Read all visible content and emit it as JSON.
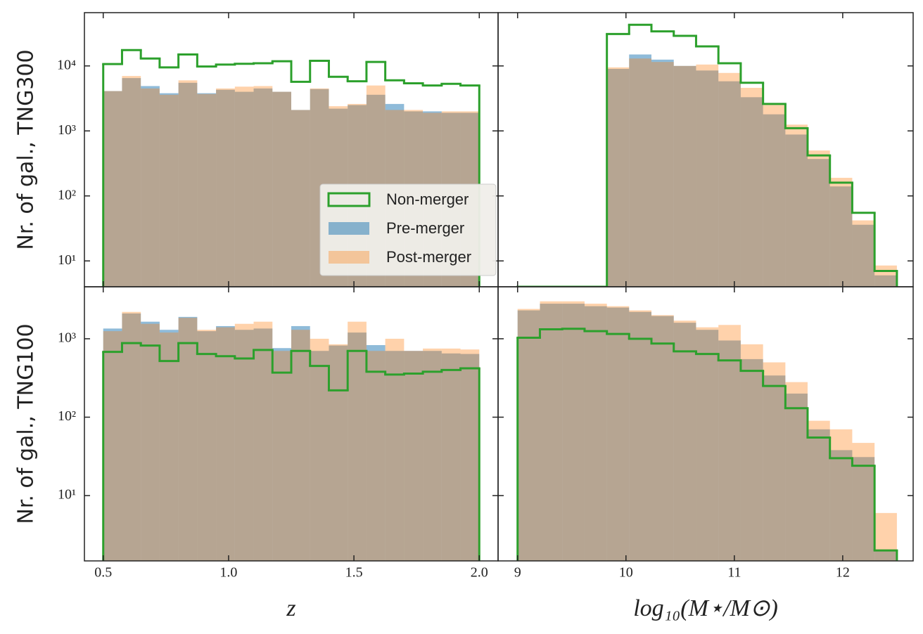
{
  "chart_data": [
    {
      "type": "histogram",
      "ylabel": "Nr. of gal., TNG300",
      "log_y": true,
      "legend": "lower center",
      "bins": [
        0.5,
        0.575,
        0.65,
        0.725,
        0.8,
        0.875,
        0.95,
        1.025,
        1.1,
        1.175,
        1.25,
        1.325,
        1.4,
        1.475,
        1.55,
        1.625,
        1.7,
        1.775,
        1.85,
        1.925,
        2.0
      ],
      "xlim": [
        0.425,
        2.075
      ],
      "xticks": [
        0.5,
        1.0,
        1.5,
        2.0
      ],
      "ylim": [
        4,
        66000
      ],
      "yticks": [
        {
          "value": 10,
          "label": "10¹"
        },
        {
          "value": 100,
          "label": "10²"
        },
        {
          "value": 1000,
          "label": "10³"
        },
        {
          "value": 10000,
          "label": "10⁴"
        }
      ],
      "series": [
        {
          "name": "Pre-merger",
          "color": "#1f77b4",
          "histtype": "stepfilled",
          "values": [
            4100,
            6500,
            4900,
            3800,
            5500,
            3800,
            4300,
            4000,
            4500,
            4000,
            2100,
            4400,
            2200,
            2500,
            3600,
            2600,
            2000,
            2000,
            1900,
            1900
          ]
        },
        {
          "name": "Post-merger",
          "color": "#ff7f0e",
          "histtype": "stepfilled",
          "values": [
            4100,
            7000,
            4500,
            3600,
            6000,
            3700,
            4500,
            4800,
            4900,
            4000,
            2100,
            4500,
            2400,
            2600,
            5000,
            2100,
            2100,
            1900,
            2000,
            2000
          ]
        },
        {
          "name": "Non-merger",
          "color": "#2ca02c",
          "histtype": "step",
          "values": [
            10700,
            17500,
            13000,
            9500,
            15000,
            9800,
            10500,
            10800,
            11000,
            11800,
            5700,
            12000,
            6800,
            5800,
            11500,
            6000,
            5400,
            5000,
            5300,
            5000
          ]
        }
      ]
    },
    {
      "type": "histogram",
      "log_y": true,
      "bins": [
        9.0,
        9.206,
        9.412,
        9.618,
        9.824,
        10.029,
        10.235,
        10.441,
        10.647,
        10.853,
        11.059,
        11.265,
        11.471,
        11.676,
        11.882,
        12.088,
        12.294,
        12.5
      ],
      "xlim": [
        8.82,
        12.65
      ],
      "xticks": [
        9,
        10,
        11,
        12
      ],
      "ylim": [
        4,
        66000
      ],
      "yticks": [
        10,
        100,
        1000,
        10000
      ],
      "series": [
        {
          "name": "Pre-merger",
          "color": "#1f77b4",
          "histtype": "stepfilled",
          "values": [
            0,
            0,
            0,
            0,
            9000,
            15000,
            12500,
            10000,
            8500,
            5800,
            3300,
            1800,
            880,
            370,
            140,
            36,
            6
          ]
        },
        {
          "name": "Post-merger",
          "color": "#ff7f0e",
          "histtype": "stepfilled",
          "values": [
            0,
            0,
            0,
            0,
            9500,
            13000,
            11500,
            10000,
            10500,
            7800,
            4600,
            2500,
            1250,
            500,
            190,
            42,
            8.5
          ]
        },
        {
          "name": "Non-merger",
          "color": "#2ca02c",
          "histtype": "step",
          "values": [
            0,
            0,
            0,
            0,
            31000,
            43000,
            34000,
            29000,
            20000,
            11000,
            5500,
            2600,
            1100,
            420,
            160,
            55,
            7
          ]
        }
      ]
    },
    {
      "type": "histogram",
      "ylabel": "Nr. of gal., TNG100",
      "xlabel": "z",
      "log_y": true,
      "bins": [
        0.5,
        0.575,
        0.65,
        0.725,
        0.8,
        0.875,
        0.95,
        1.025,
        1.1,
        1.175,
        1.25,
        1.325,
        1.4,
        1.475,
        1.55,
        1.625,
        1.7,
        1.775,
        1.85,
        1.925,
        2.0
      ],
      "xlim": [
        0.425,
        2.075
      ],
      "xticks": [
        0.5,
        {
          "value": 1.0,
          "label": "1.0"
        },
        1.5,
        {
          "value": 2.0,
          "label": "2.0"
        }
      ],
      "ylim": [
        1.47,
        4600
      ],
      "yticks": [
        {
          "value": 10,
          "label": "10¹"
        },
        {
          "value": 100,
          "label": "10²"
        },
        {
          "value": 1000,
          "label": "10³"
        }
      ],
      "series": [
        {
          "name": "Pre-merger",
          "color": "#1f77b4",
          "histtype": "stepfilled",
          "values": [
            1350,
            2100,
            1650,
            1300,
            1900,
            1250,
            1450,
            1300,
            1350,
            760,
            1450,
            700,
            820,
            1200,
            830,
            700,
            700,
            700,
            650,
            640
          ]
        },
        {
          "name": "Post-merger",
          "color": "#ff7f0e",
          "histtype": "stepfilled",
          "values": [
            1250,
            2200,
            1550,
            1200,
            1850,
            1300,
            1400,
            1550,
            1650,
            700,
            1300,
            1000,
            850,
            1650,
            700,
            1000,
            700,
            750,
            750,
            730
          ]
        },
        {
          "name": "Non-merger",
          "color": "#2ca02c",
          "histtype": "step",
          "values": [
            680,
            880,
            820,
            520,
            880,
            640,
            600,
            560,
            720,
            370,
            700,
            450,
            220,
            700,
            380,
            350,
            360,
            380,
            400,
            420
          ]
        }
      ]
    },
    {
      "type": "histogram",
      "xlabel": "log₁₀(M⋆/M⊙)",
      "log_y": true,
      "bins": [
        9.0,
        9.206,
        9.412,
        9.618,
        9.824,
        10.029,
        10.235,
        10.441,
        10.647,
        10.853,
        11.059,
        11.265,
        11.471,
        11.676,
        11.882,
        12.088,
        12.294,
        12.5
      ],
      "xlim": [
        8.82,
        12.65
      ],
      "xticks": [
        9,
        10,
        11,
        12
      ],
      "ylim": [
        1.47,
        4600
      ],
      "yticks": [
        10,
        100,
        1000
      ],
      "series": [
        {
          "name": "Pre-merger",
          "color": "#1f77b4",
          "histtype": "stepfilled",
          "values": [
            2300,
            2800,
            2800,
            2600,
            2500,
            2200,
            1950,
            1600,
            1300,
            950,
            550,
            340,
            200,
            70,
            38,
            31,
            2
          ]
        },
        {
          "name": "Post-merger",
          "color": "#ff7f0e",
          "histtype": "stepfilled",
          "values": [
            2400,
            3000,
            3000,
            2800,
            2600,
            2300,
            2000,
            1700,
            1400,
            1500,
            850,
            500,
            280,
            90,
            70,
            47,
            6
          ]
        },
        {
          "name": "Non-merger",
          "color": "#2ca02c",
          "histtype": "step",
          "values": [
            1030,
            1320,
            1340,
            1250,
            1150,
            1000,
            870,
            690,
            640,
            530,
            390,
            250,
            130,
            55,
            30,
            24,
            2
          ]
        }
      ]
    }
  ]
}
